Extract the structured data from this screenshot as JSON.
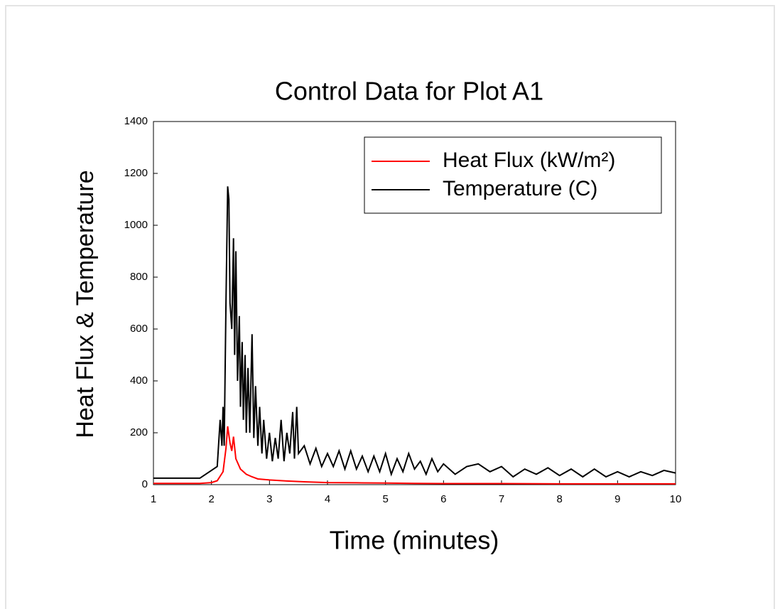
{
  "chart_data": {
    "type": "line",
    "title": "Control Data for Plot A1",
    "x_label": "Time (minutes)",
    "y_label": "Heat Flux & Temperature",
    "xlim": [
      1,
      10
    ],
    "xticks": [
      1,
      2,
      3,
      4,
      5,
      6,
      7,
      8,
      9,
      10
    ],
    "ylim": [
      0,
      1400
    ],
    "yticks": [
      0,
      200,
      400,
      600,
      800,
      1000,
      1200,
      1400
    ],
    "legend": "upper right",
    "series": [
      {
        "name": "Heat Flux (kW/m²)",
        "color": "#ff0000",
        "x": [
          1.0,
          1.8,
          2.0,
          2.1,
          2.2,
          2.25,
          2.28,
          2.32,
          2.35,
          2.38,
          2.42,
          2.5,
          2.6,
          2.7,
          2.8,
          3.0,
          3.3,
          3.6,
          4.0,
          4.5,
          5.0,
          5.5,
          6.0,
          7.0,
          8.0,
          9.0,
          10.0
        ],
        "values": [
          5,
          5,
          8,
          15,
          50,
          140,
          225,
          160,
          130,
          185,
          100,
          60,
          40,
          30,
          22,
          18,
          14,
          11,
          8,
          7,
          6,
          5,
          4,
          4,
          3,
          3,
          3
        ]
      },
      {
        "name": "Temperature (C)",
        "color": "#000000",
        "x": [
          1.0,
          1.8,
          1.9,
          2.0,
          2.1,
          2.15,
          2.18,
          2.2,
          2.22,
          2.25,
          2.28,
          2.3,
          2.32,
          2.35,
          2.38,
          2.4,
          2.42,
          2.45,
          2.48,
          2.5,
          2.53,
          2.55,
          2.58,
          2.6,
          2.63,
          2.66,
          2.7,
          2.73,
          2.76,
          2.8,
          2.83,
          2.87,
          2.9,
          2.95,
          3.0,
          3.05,
          3.1,
          3.15,
          3.2,
          3.25,
          3.3,
          3.35,
          3.4,
          3.43,
          3.47,
          3.5,
          3.6,
          3.7,
          3.8,
          3.9,
          4.0,
          4.1,
          4.2,
          4.3,
          4.4,
          4.5,
          4.6,
          4.7,
          4.8,
          4.9,
          5.0,
          5.1,
          5.2,
          5.3,
          5.4,
          5.5,
          5.6,
          5.7,
          5.8,
          5.9,
          6.0,
          6.2,
          6.4,
          6.6,
          6.8,
          7.0,
          7.2,
          7.4,
          7.6,
          7.8,
          8.0,
          8.2,
          8.4,
          8.6,
          8.8,
          9.0,
          9.2,
          9.4,
          9.6,
          9.8,
          10.0
        ],
        "values": [
          25,
          25,
          40,
          55,
          70,
          250,
          150,
          300,
          150,
          700,
          1150,
          1100,
          700,
          600,
          950,
          500,
          900,
          400,
          650,
          300,
          550,
          250,
          500,
          200,
          450,
          200,
          580,
          180,
          380,
          150,
          300,
          120,
          250,
          100,
          200,
          90,
          180,
          100,
          250,
          90,
          200,
          120,
          280,
          100,
          300,
          120,
          150,
          80,
          140,
          70,
          120,
          70,
          130,
          60,
          130,
          60,
          110,
          50,
          110,
          50,
          120,
          40,
          100,
          50,
          120,
          60,
          90,
          40,
          100,
          50,
          80,
          40,
          70,
          80,
          50,
          70,
          30,
          60,
          40,
          65,
          35,
          60,
          30,
          60,
          30,
          50,
          30,
          50,
          35,
          55,
          45
        ]
      }
    ]
  }
}
